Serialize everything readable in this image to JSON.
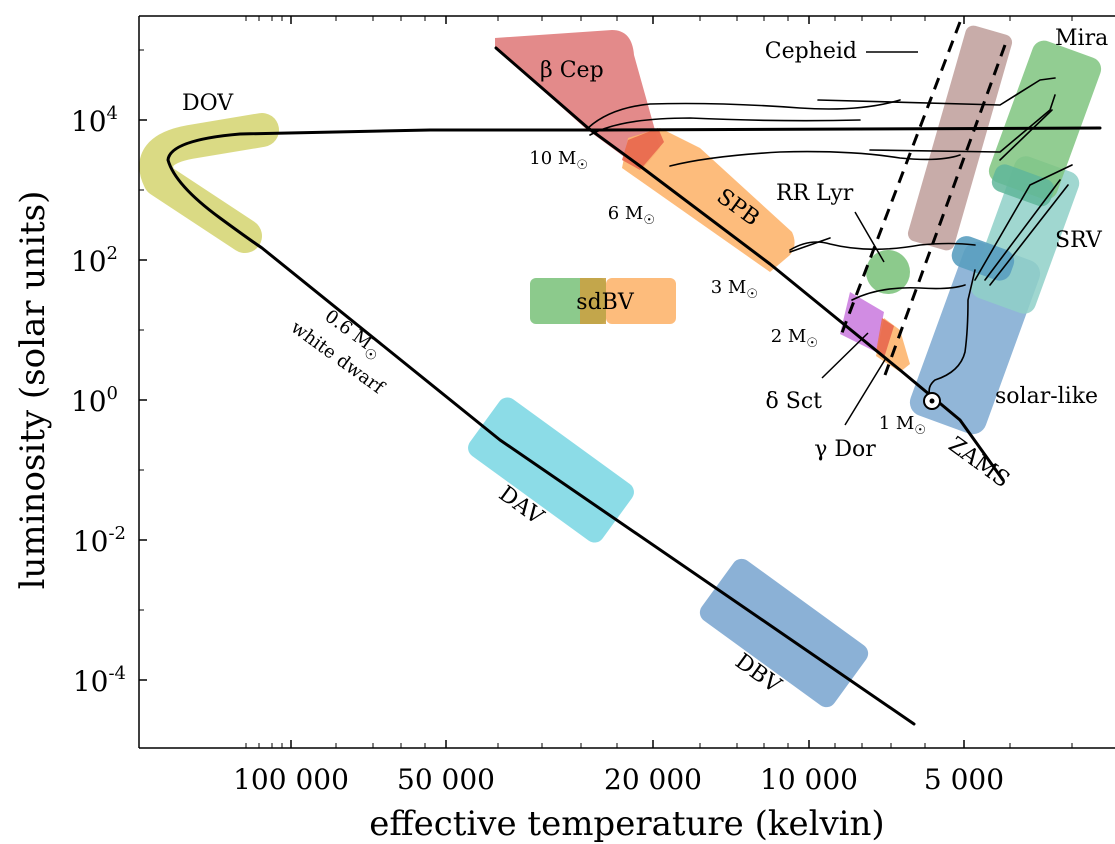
{
  "axes": {
    "x_label": "effective temperature (kelvin)",
    "y_label": "luminosity (solar units)",
    "x_ticks": [
      {
        "value": 100000,
        "label": "100 000"
      },
      {
        "value": 50000,
        "label": "50 000"
      },
      {
        "value": 20000,
        "label": "20 000"
      },
      {
        "value": 10000,
        "label": "10 000"
      },
      {
        "value": 5000,
        "label": "5 000"
      }
    ],
    "y_ticks": [
      {
        "base": "10",
        "exp": "4"
      },
      {
        "base": "10",
        "exp": "2"
      },
      {
        "base": "10",
        "exp": "0"
      },
      {
        "base": "10",
        "exp": "-2"
      },
      {
        "base": "10",
        "exp": "-4"
      }
    ]
  },
  "regions": {
    "dov": {
      "label": "DOV",
      "color": "#d4d46e"
    },
    "beta_cep": {
      "label": "β Cep",
      "color": "#e07d7d"
    },
    "spb": {
      "label": "SPB",
      "color": "#fdb56e"
    },
    "sdbv": {
      "label": "sdBV",
      "color_left": "#7fc47f",
      "color_right": "#fdb56e"
    },
    "cepheid": {
      "label": "Cepheid",
      "color": "#c2a3a0"
    },
    "mira": {
      "label": "Mira",
      "color": "#7fc47f"
    },
    "srv": {
      "label": "SRV",
      "color": "#8fd0c8"
    },
    "rr_lyr": {
      "label": "RR Lyr",
      "color": "#7fc47f"
    },
    "delta_sct": {
      "label": "δ Sct",
      "color": "#cc80e0"
    },
    "gamma_dor": {
      "label": "γ Dor",
      "color": "#fdb56e"
    },
    "solar_like": {
      "label": "solar-like",
      "color": "#7ea9d1"
    },
    "dav": {
      "label": "DAV",
      "color": "#7fd8e4"
    },
    "dbv": {
      "label": "DBV",
      "color": "#7ea9d1"
    }
  },
  "tracks": {
    "white_dwarf_line1": "0.6 M",
    "white_dwarf_line2": "white dwarf",
    "zams": "ZAMS",
    "masses": [
      "10 M",
      "6 M",
      "3 M",
      "2 M",
      "1 M"
    ],
    "sun_symbol": "⊙"
  }
}
